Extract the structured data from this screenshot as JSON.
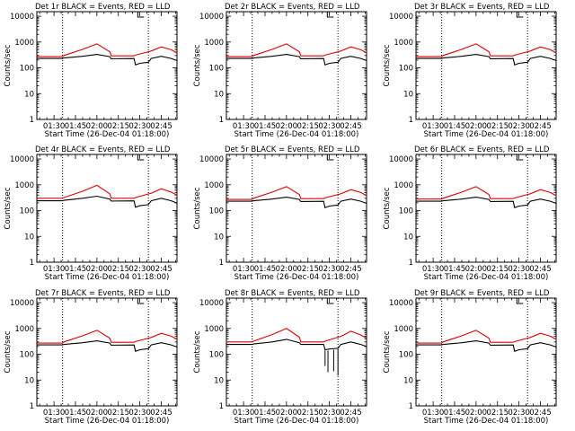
{
  "figure": {
    "background": "#ffffff",
    "events_color": "#000000",
    "lld_color": "#e00000"
  },
  "chart_data": [
    {
      "type": "line",
      "title": "Det 1r BLACK = Events, RED = LLD",
      "xlabel": "Start Time (26-Dec-04 01:18:00)",
      "ylabel": "Counts/sec",
      "yscale": "log",
      "ylim": [
        1,
        15000
      ],
      "xlim": [
        "01:18",
        "02:56"
      ],
      "xticks": [
        "01:30",
        "01:45",
        "02:00",
        "02:15",
        "02:30",
        "02:45"
      ],
      "yticks": [
        "1",
        "10",
        "100",
        "1000",
        "10000"
      ],
      "dotted_vlines": [
        "01:36",
        "02:36"
      ],
      "series": [
        {
          "name": "Events",
          "color": "#000000",
          "x": [
            "01:18",
            "01:36",
            "01:37",
            "01:50",
            "02:00",
            "02:09",
            "02:10",
            "02:26",
            "02:27",
            "02:30",
            "02:36",
            "02:38",
            "02:45",
            "02:52",
            "02:56"
          ],
          "y": [
            230,
            230,
            240,
            280,
            330,
            270,
            225,
            228,
            130,
            150,
            165,
            230,
            280,
            230,
            190
          ]
        },
        {
          "name": "LLD",
          "color": "#e00000",
          "x": [
            "01:18",
            "01:36",
            "01:37",
            "01:50",
            "02:00",
            "02:09",
            "02:10",
            "02:26",
            "02:27",
            "02:36",
            "02:38",
            "02:45",
            "02:52",
            "02:56"
          ],
          "y": [
            270,
            270,
            300,
            520,
            850,
            420,
            290,
            290,
            310,
            420,
            450,
            650,
            500,
            380
          ]
        }
      ]
    },
    {
      "type": "line",
      "title": "Det 2r BLACK = Events, RED = LLD",
      "xlabel": "Start Time (26-Dec-04 01:18:00)",
      "ylabel": "Counts/sec",
      "yscale": "log",
      "ylim": [
        1,
        15000
      ],
      "xlim": [
        "01:18",
        "02:56"
      ],
      "xticks": [
        "01:30",
        "01:45",
        "02:00",
        "02:15",
        "02:30",
        "02:45"
      ],
      "yticks": [
        "1",
        "10",
        "100",
        "1000",
        "10000"
      ],
      "dotted_vlines": [
        "01:36",
        "02:36"
      ],
      "series": [
        {
          "name": "Events",
          "color": "#000000",
          "x": [
            "01:18",
            "01:36",
            "01:37",
            "01:50",
            "02:00",
            "02:09",
            "02:10",
            "02:26",
            "02:27",
            "02:30",
            "02:36",
            "02:38",
            "02:45",
            "02:52",
            "02:56"
          ],
          "y": [
            230,
            230,
            240,
            280,
            330,
            270,
            225,
            228,
            130,
            150,
            165,
            230,
            280,
            230,
            190
          ]
        },
        {
          "name": "LLD",
          "color": "#e00000",
          "x": [
            "01:18",
            "01:36",
            "01:37",
            "01:50",
            "02:00",
            "02:09",
            "02:10",
            "02:26",
            "02:27",
            "02:36",
            "02:38",
            "02:45",
            "02:52",
            "02:56"
          ],
          "y": [
            270,
            270,
            300,
            520,
            850,
            420,
            290,
            290,
            310,
            420,
            450,
            650,
            500,
            380
          ]
        }
      ]
    },
    {
      "type": "line",
      "title": "Det 3r BLACK = Events, RED = LLD",
      "xlabel": "Start Time (26-Dec-04 01:18:00)",
      "ylabel": "Counts/sec",
      "yscale": "log",
      "ylim": [
        1,
        15000
      ],
      "xlim": [
        "01:18",
        "02:56"
      ],
      "xticks": [
        "01:30",
        "01:45",
        "02:00",
        "02:15",
        "02:30",
        "02:45"
      ],
      "yticks": [
        "1",
        "10",
        "100",
        "1000",
        "10000"
      ],
      "dotted_vlines": [
        "01:36",
        "02:36"
      ],
      "series": [
        {
          "name": "Events",
          "color": "#000000",
          "x": [
            "01:18",
            "01:36",
            "01:37",
            "01:50",
            "02:00",
            "02:09",
            "02:10",
            "02:26",
            "02:27",
            "02:30",
            "02:36",
            "02:38",
            "02:45",
            "02:52",
            "02:56"
          ],
          "y": [
            230,
            230,
            240,
            280,
            330,
            270,
            225,
            228,
            130,
            150,
            165,
            230,
            280,
            230,
            190
          ]
        },
        {
          "name": "LLD",
          "color": "#e00000",
          "x": [
            "01:18",
            "01:36",
            "01:37",
            "01:50",
            "02:00",
            "02:09",
            "02:10",
            "02:26",
            "02:27",
            "02:36",
            "02:38",
            "02:45",
            "02:52",
            "02:56"
          ],
          "y": [
            270,
            270,
            300,
            520,
            850,
            420,
            290,
            290,
            310,
            420,
            450,
            650,
            500,
            380
          ]
        }
      ]
    },
    {
      "type": "line",
      "title": "Det 4r BLACK = Events, RED = LLD",
      "xlabel": "Start Time (26-Dec-04 01:18:00)",
      "ylabel": "Counts/sec",
      "yscale": "log",
      "ylim": [
        1,
        15000
      ],
      "xlim": [
        "01:18",
        "02:56"
      ],
      "xticks": [
        "01:30",
        "01:45",
        "02:00",
        "02:15",
        "02:30",
        "02:45"
      ],
      "yticks": [
        "1",
        "10",
        "100",
        "1000",
        "10000"
      ],
      "dotted_vlines": [
        "01:36",
        "02:36"
      ],
      "series": [
        {
          "name": "Events",
          "color": "#000000",
          "x": [
            "01:18",
            "01:36",
            "01:37",
            "01:50",
            "02:00",
            "02:09",
            "02:10",
            "02:26",
            "02:27",
            "02:30",
            "02:36",
            "02:38",
            "02:45",
            "02:52",
            "02:56"
          ],
          "y": [
            240,
            240,
            250,
            300,
            360,
            280,
            235,
            238,
            135,
            155,
            170,
            240,
            300,
            240,
            195
          ]
        },
        {
          "name": "LLD",
          "color": "#e00000",
          "x": [
            "01:18",
            "01:36",
            "01:37",
            "01:50",
            "02:00",
            "02:09",
            "02:10",
            "02:26",
            "02:27",
            "02:36",
            "02:38",
            "02:45",
            "02:52",
            "02:56"
          ],
          "y": [
            300,
            300,
            320,
            560,
            950,
            450,
            300,
            300,
            320,
            440,
            470,
            700,
            520,
            400
          ]
        }
      ]
    },
    {
      "type": "line",
      "title": "Det 5r BLACK = Events, RED = LLD",
      "xlabel": "Start Time (26-Dec-04 01:18:00)",
      "ylabel": "Counts/sec",
      "yscale": "log",
      "ylim": [
        1,
        15000
      ],
      "xlim": [
        "01:18",
        "02:56"
      ],
      "xticks": [
        "01:30",
        "01:45",
        "02:00",
        "02:15",
        "02:30",
        "02:45"
      ],
      "yticks": [
        "1",
        "10",
        "100",
        "1000",
        "10000"
      ],
      "dotted_vlines": [
        "01:36",
        "02:36"
      ],
      "series": [
        {
          "name": "Events",
          "color": "#000000",
          "x": [
            "01:18",
            "01:36",
            "01:37",
            "01:50",
            "02:00",
            "02:09",
            "02:10",
            "02:26",
            "02:27",
            "02:30",
            "02:36",
            "02:38",
            "02:45",
            "02:52",
            "02:56"
          ],
          "y": [
            230,
            230,
            240,
            280,
            330,
            270,
            225,
            228,
            130,
            150,
            165,
            230,
            280,
            230,
            190
          ]
        },
        {
          "name": "LLD",
          "color": "#e00000",
          "x": [
            "01:18",
            "01:36",
            "01:37",
            "01:50",
            "02:00",
            "02:09",
            "02:10",
            "02:26",
            "02:27",
            "02:36",
            "02:38",
            "02:45",
            "02:52",
            "02:56"
          ],
          "y": [
            270,
            270,
            300,
            520,
            850,
            420,
            290,
            290,
            310,
            420,
            450,
            650,
            500,
            380
          ]
        }
      ]
    },
    {
      "type": "line",
      "title": "Det 6r BLACK = Events, RED = LLD",
      "xlabel": "Start Time (26-Dec-04 01:18:00)",
      "ylabel": "Counts/sec",
      "yscale": "log",
      "ylim": [
        1,
        15000
      ],
      "xlim": [
        "01:18",
        "02:56"
      ],
      "xticks": [
        "01:30",
        "01:45",
        "02:00",
        "02:15",
        "02:30",
        "02:45"
      ],
      "yticks": [
        "1",
        "10",
        "100",
        "1000",
        "10000"
      ],
      "dotted_vlines": [
        "01:36",
        "02:36"
      ],
      "series": [
        {
          "name": "Events",
          "color": "#000000",
          "x": [
            "01:18",
            "01:36",
            "01:37",
            "01:50",
            "02:00",
            "02:09",
            "02:10",
            "02:26",
            "02:27",
            "02:30",
            "02:36",
            "02:38",
            "02:45",
            "02:52",
            "02:56"
          ],
          "y": [
            230,
            230,
            240,
            280,
            330,
            270,
            225,
            228,
            130,
            150,
            165,
            230,
            280,
            230,
            190
          ]
        },
        {
          "name": "LLD",
          "color": "#e00000",
          "x": [
            "01:18",
            "01:36",
            "01:37",
            "01:50",
            "02:00",
            "02:09",
            "02:10",
            "02:26",
            "02:27",
            "02:36",
            "02:38",
            "02:45",
            "02:52",
            "02:56"
          ],
          "y": [
            280,
            280,
            300,
            520,
            850,
            420,
            290,
            290,
            310,
            420,
            450,
            650,
            500,
            380
          ]
        }
      ]
    },
    {
      "type": "line",
      "title": "Det 7r BLACK = Events, RED = LLD",
      "xlabel": "Start Time (26-Dec-04 01:18:00)",
      "ylabel": "Counts/sec",
      "yscale": "log",
      "ylim": [
        1,
        15000
      ],
      "xlim": [
        "01:18",
        "02:56"
      ],
      "xticks": [
        "01:30",
        "01:45",
        "02:00",
        "02:15",
        "02:30",
        "02:45"
      ],
      "yticks": [
        "1",
        "10",
        "100",
        "1000",
        "10000"
      ],
      "dotted_vlines": [
        "01:36",
        "02:36"
      ],
      "series": [
        {
          "name": "Events",
          "color": "#000000",
          "x": [
            "01:18",
            "01:36",
            "01:37",
            "01:50",
            "02:00",
            "02:09",
            "02:10",
            "02:26",
            "02:27",
            "02:30",
            "02:36",
            "02:38",
            "02:45",
            "02:52",
            "02:56"
          ],
          "y": [
            230,
            230,
            240,
            280,
            330,
            270,
            225,
            228,
            130,
            150,
            165,
            230,
            280,
            230,
            190
          ]
        },
        {
          "name": "LLD",
          "color": "#e00000",
          "x": [
            "01:18",
            "01:36",
            "01:37",
            "01:50",
            "02:00",
            "02:09",
            "02:10",
            "02:26",
            "02:27",
            "02:36",
            "02:38",
            "02:45",
            "02:52",
            "02:56"
          ],
          "y": [
            270,
            270,
            300,
            520,
            850,
            420,
            290,
            290,
            310,
            420,
            450,
            650,
            500,
            380
          ]
        }
      ]
    },
    {
      "type": "line",
      "title": "Det 8r BLACK = Events, RED = LLD",
      "xlabel": "Start Time (26-Dec-04 01:18:00)",
      "ylabel": "Counts/sec",
      "yscale": "log",
      "ylim": [
        1,
        15000
      ],
      "xlim": [
        "01:18",
        "02:56"
      ],
      "xticks": [
        "01:30",
        "01:45",
        "02:00",
        "02:15",
        "02:30",
        "02:45"
      ],
      "yticks": [
        "1",
        "10",
        "100",
        "1000",
        "10000"
      ],
      "dotted_vlines": [
        "01:36",
        "02:36"
      ],
      "series": [
        {
          "name": "Events",
          "color": "#000000",
          "x": [
            "01:18",
            "01:36",
            "01:37",
            "01:50",
            "02:00",
            "02:09",
            "02:10",
            "02:26",
            "02:27",
            "02:30",
            "02:36",
            "02:38",
            "02:45",
            "02:52",
            "02:56"
          ],
          "y": [
            240,
            240,
            250,
            300,
            380,
            280,
            240,
            240,
            150,
            160,
            170,
            240,
            300,
            240,
            200
          ]
        },
        {
          "name": "LLD",
          "color": "#e00000",
          "x": [
            "01:18",
            "01:36",
            "01:37",
            "01:50",
            "02:00",
            "02:09",
            "02:10",
            "02:26",
            "02:27",
            "02:36",
            "02:38",
            "02:45",
            "02:52",
            "02:56"
          ],
          "y": [
            300,
            300,
            320,
            580,
            1000,
            460,
            300,
            300,
            320,
            460,
            490,
            780,
            560,
            420
          ]
        }
      ],
      "spikes": [
        {
          "x": "02:27",
          "y_top": 140,
          "y_bottom": 35
        },
        {
          "x": "02:29",
          "y_top": 140,
          "y_bottom": 20
        },
        {
          "x": "02:33",
          "y_top": 150,
          "y_bottom": 22
        },
        {
          "x": "02:36",
          "y_top": 160,
          "y_bottom": 15
        }
      ]
    },
    {
      "type": "line",
      "title": "Det 9r BLACK = Events, RED = LLD",
      "xlabel": "Start Time (26-Dec-04 01:18:00)",
      "ylabel": "Counts/sec",
      "yscale": "log",
      "ylim": [
        1,
        15000
      ],
      "xlim": [
        "01:18",
        "02:56"
      ],
      "xticks": [
        "01:30",
        "01:45",
        "02:00",
        "02:15",
        "02:30",
        "02:45"
      ],
      "yticks": [
        "1",
        "10",
        "100",
        "1000",
        "10000"
      ],
      "dotted_vlines": [
        "01:36",
        "02:36"
      ],
      "series": [
        {
          "name": "Events",
          "color": "#000000",
          "x": [
            "01:18",
            "01:36",
            "01:37",
            "01:50",
            "02:00",
            "02:09",
            "02:10",
            "02:26",
            "02:27",
            "02:30",
            "02:36",
            "02:38",
            "02:45",
            "02:52",
            "02:56"
          ],
          "y": [
            230,
            230,
            240,
            280,
            330,
            270,
            225,
            228,
            130,
            150,
            165,
            230,
            280,
            230,
            190
          ]
        },
        {
          "name": "LLD",
          "color": "#e00000",
          "x": [
            "01:18",
            "01:36",
            "01:37",
            "01:50",
            "02:00",
            "02:09",
            "02:10",
            "02:26",
            "02:27",
            "02:36",
            "02:38",
            "02:45",
            "02:52",
            "02:56"
          ],
          "y": [
            270,
            270,
            300,
            520,
            850,
            420,
            290,
            290,
            310,
            420,
            450,
            650,
            500,
            380
          ]
        }
      ]
    }
  ]
}
